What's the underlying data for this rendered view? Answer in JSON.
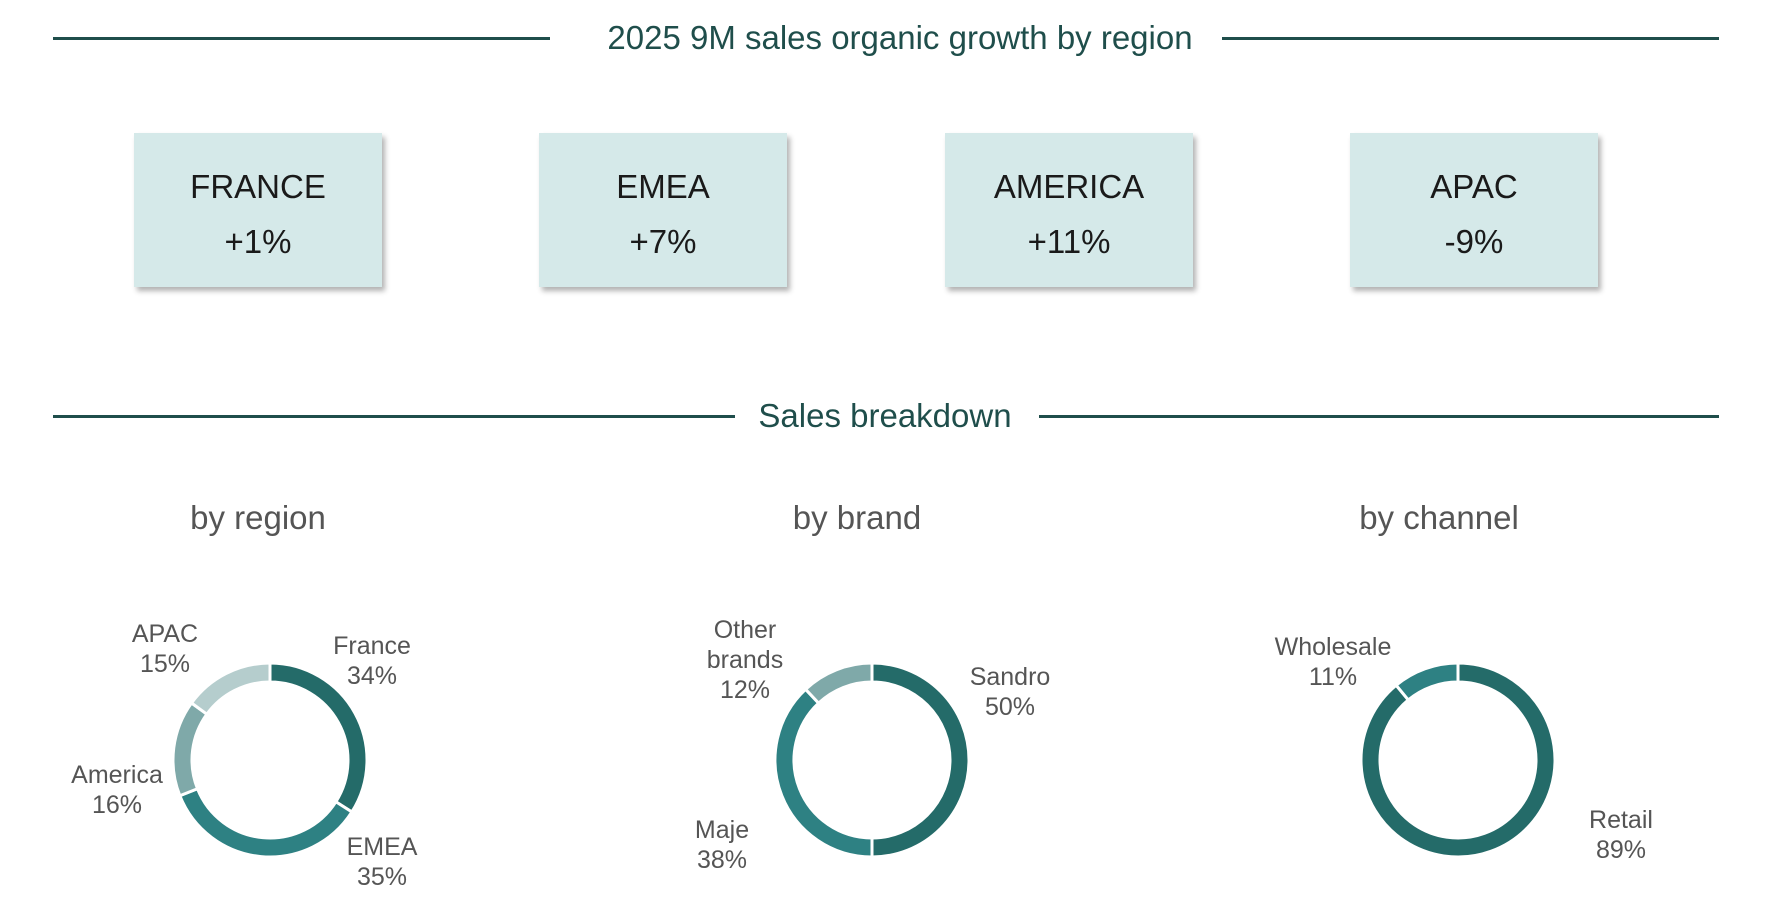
{
  "header_growth": {
    "title": "2025 9M sales organic growth by region"
  },
  "growth_cards": [
    {
      "region": "FRANCE",
      "growth": "+1%"
    },
    {
      "region": "EMEA",
      "growth": "+7%"
    },
    {
      "region": "AMERICA",
      "growth": "+11%"
    },
    {
      "region": "APAC",
      "growth": "-9%"
    }
  ],
  "header_breakdown": {
    "title": "Sales breakdown"
  },
  "colors": {
    "dark": "#246b69",
    "mid": "#2e8183",
    "light": "#7fa9a9",
    "lighter": "#b5cdcd",
    "line": "#1f4e4b",
    "card_bg": "#d5e9e9"
  },
  "chart_data": [
    {
      "type": "pie",
      "title": "by region",
      "categories": [
        "France",
        "EMEA",
        "America",
        "APAC"
      ],
      "values": [
        34,
        35,
        16,
        15
      ],
      "value_labels": [
        "34%",
        "35%",
        "16%",
        "15%"
      ],
      "colors": [
        "#246b69",
        "#2e8183",
        "#7fa9a9",
        "#b5cdcd"
      ]
    },
    {
      "type": "pie",
      "title": "by brand",
      "categories": [
        "Sandro",
        "Maje",
        "Other brands"
      ],
      "values": [
        50,
        38,
        12
      ],
      "value_labels": [
        "50%",
        "38%",
        "12%"
      ],
      "colors": [
        "#246b69",
        "#2e8183",
        "#7fa9a9"
      ]
    },
    {
      "type": "pie",
      "title": "by channel",
      "categories": [
        "Retail",
        "Wholesale"
      ],
      "values": [
        89,
        11
      ],
      "value_labels": [
        "89%",
        "11%"
      ],
      "colors": [
        "#246b69",
        "#2e8183"
      ]
    }
  ]
}
